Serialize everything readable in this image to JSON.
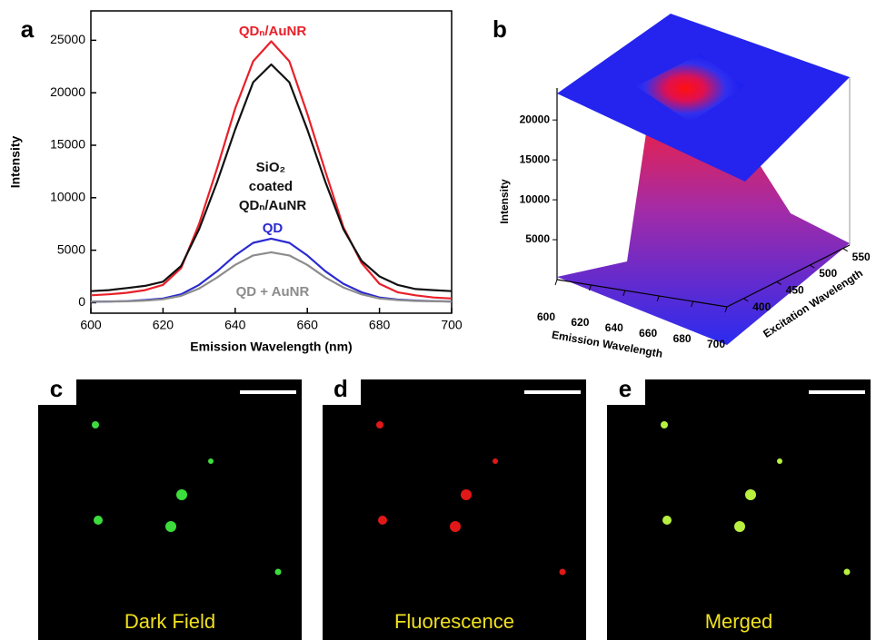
{
  "chart_data": [
    {
      "type": "line",
      "panel": "a",
      "x_label": "Emission Wavelength (nm)",
      "y_label": "Intensity",
      "x": [
        600,
        605,
        610,
        615,
        620,
        625,
        630,
        635,
        640,
        645,
        650,
        655,
        660,
        665,
        670,
        675,
        680,
        685,
        690,
        695,
        700
      ],
      "xlim": [
        600,
        700
      ],
      "xticks": [
        600,
        620,
        640,
        660,
        680,
        700
      ],
      "ylim": [
        -1000,
        27800
      ],
      "yticks": [
        0,
        5000,
        10000,
        15000,
        20000,
        25000
      ],
      "series": [
        {
          "name": "QDₙ/AuNR",
          "color": "#e8202a",
          "values": [
            700,
            800,
            950,
            1200,
            1700,
            3300,
            7500,
            12800,
            18500,
            23000,
            24900,
            23000,
            18000,
            12500,
            7200,
            3800,
            1800,
            1000,
            700,
            500,
            400
          ]
        },
        {
          "name": "SiO₂ coated QDₙ/AuNR",
          "color": "#111111",
          "values": [
            1100,
            1200,
            1400,
            1600,
            2000,
            3500,
            7000,
            11500,
            16500,
            21000,
            22700,
            21000,
            16500,
            11500,
            7000,
            4000,
            2500,
            1700,
            1300,
            1200,
            1100
          ]
        },
        {
          "name": "QD",
          "color": "#2a2ad0",
          "values": [
            100,
            120,
            150,
            250,
            400,
            800,
            1700,
            3000,
            4500,
            5700,
            6100,
            5700,
            4500,
            3000,
            1800,
            1000,
            500,
            300,
            200,
            150,
            120
          ]
        },
        {
          "name": "QD + AuNR",
          "color": "#8c8c8c",
          "values": [
            100,
            110,
            130,
            200,
            320,
            650,
            1350,
            2400,
            3600,
            4500,
            4800,
            4500,
            3600,
            2400,
            1450,
            800,
            400,
            250,
            170,
            130,
            110
          ]
        }
      ]
    },
    {
      "type": "surface3d",
      "panel": "b",
      "x_label": "Emission Wavelength",
      "y_label": "Excitation Wavelength",
      "z_label": "Intensity",
      "xlim": [
        600,
        700
      ],
      "xticks": [
        600,
        620,
        640,
        660,
        680,
        700
      ],
      "ylim": [
        375,
        560
      ],
      "yticks": [
        400,
        450,
        500,
        550
      ],
      "zlim": [
        0,
        24000
      ],
      "zticks": [
        5000,
        10000,
        15000,
        20000
      ]
    }
  ],
  "images": [
    {
      "panel": "c",
      "caption": "Dark Field"
    },
    {
      "panel": "d",
      "caption": "Fluorescence"
    },
    {
      "panel": "e",
      "caption": "Merged"
    }
  ]
}
